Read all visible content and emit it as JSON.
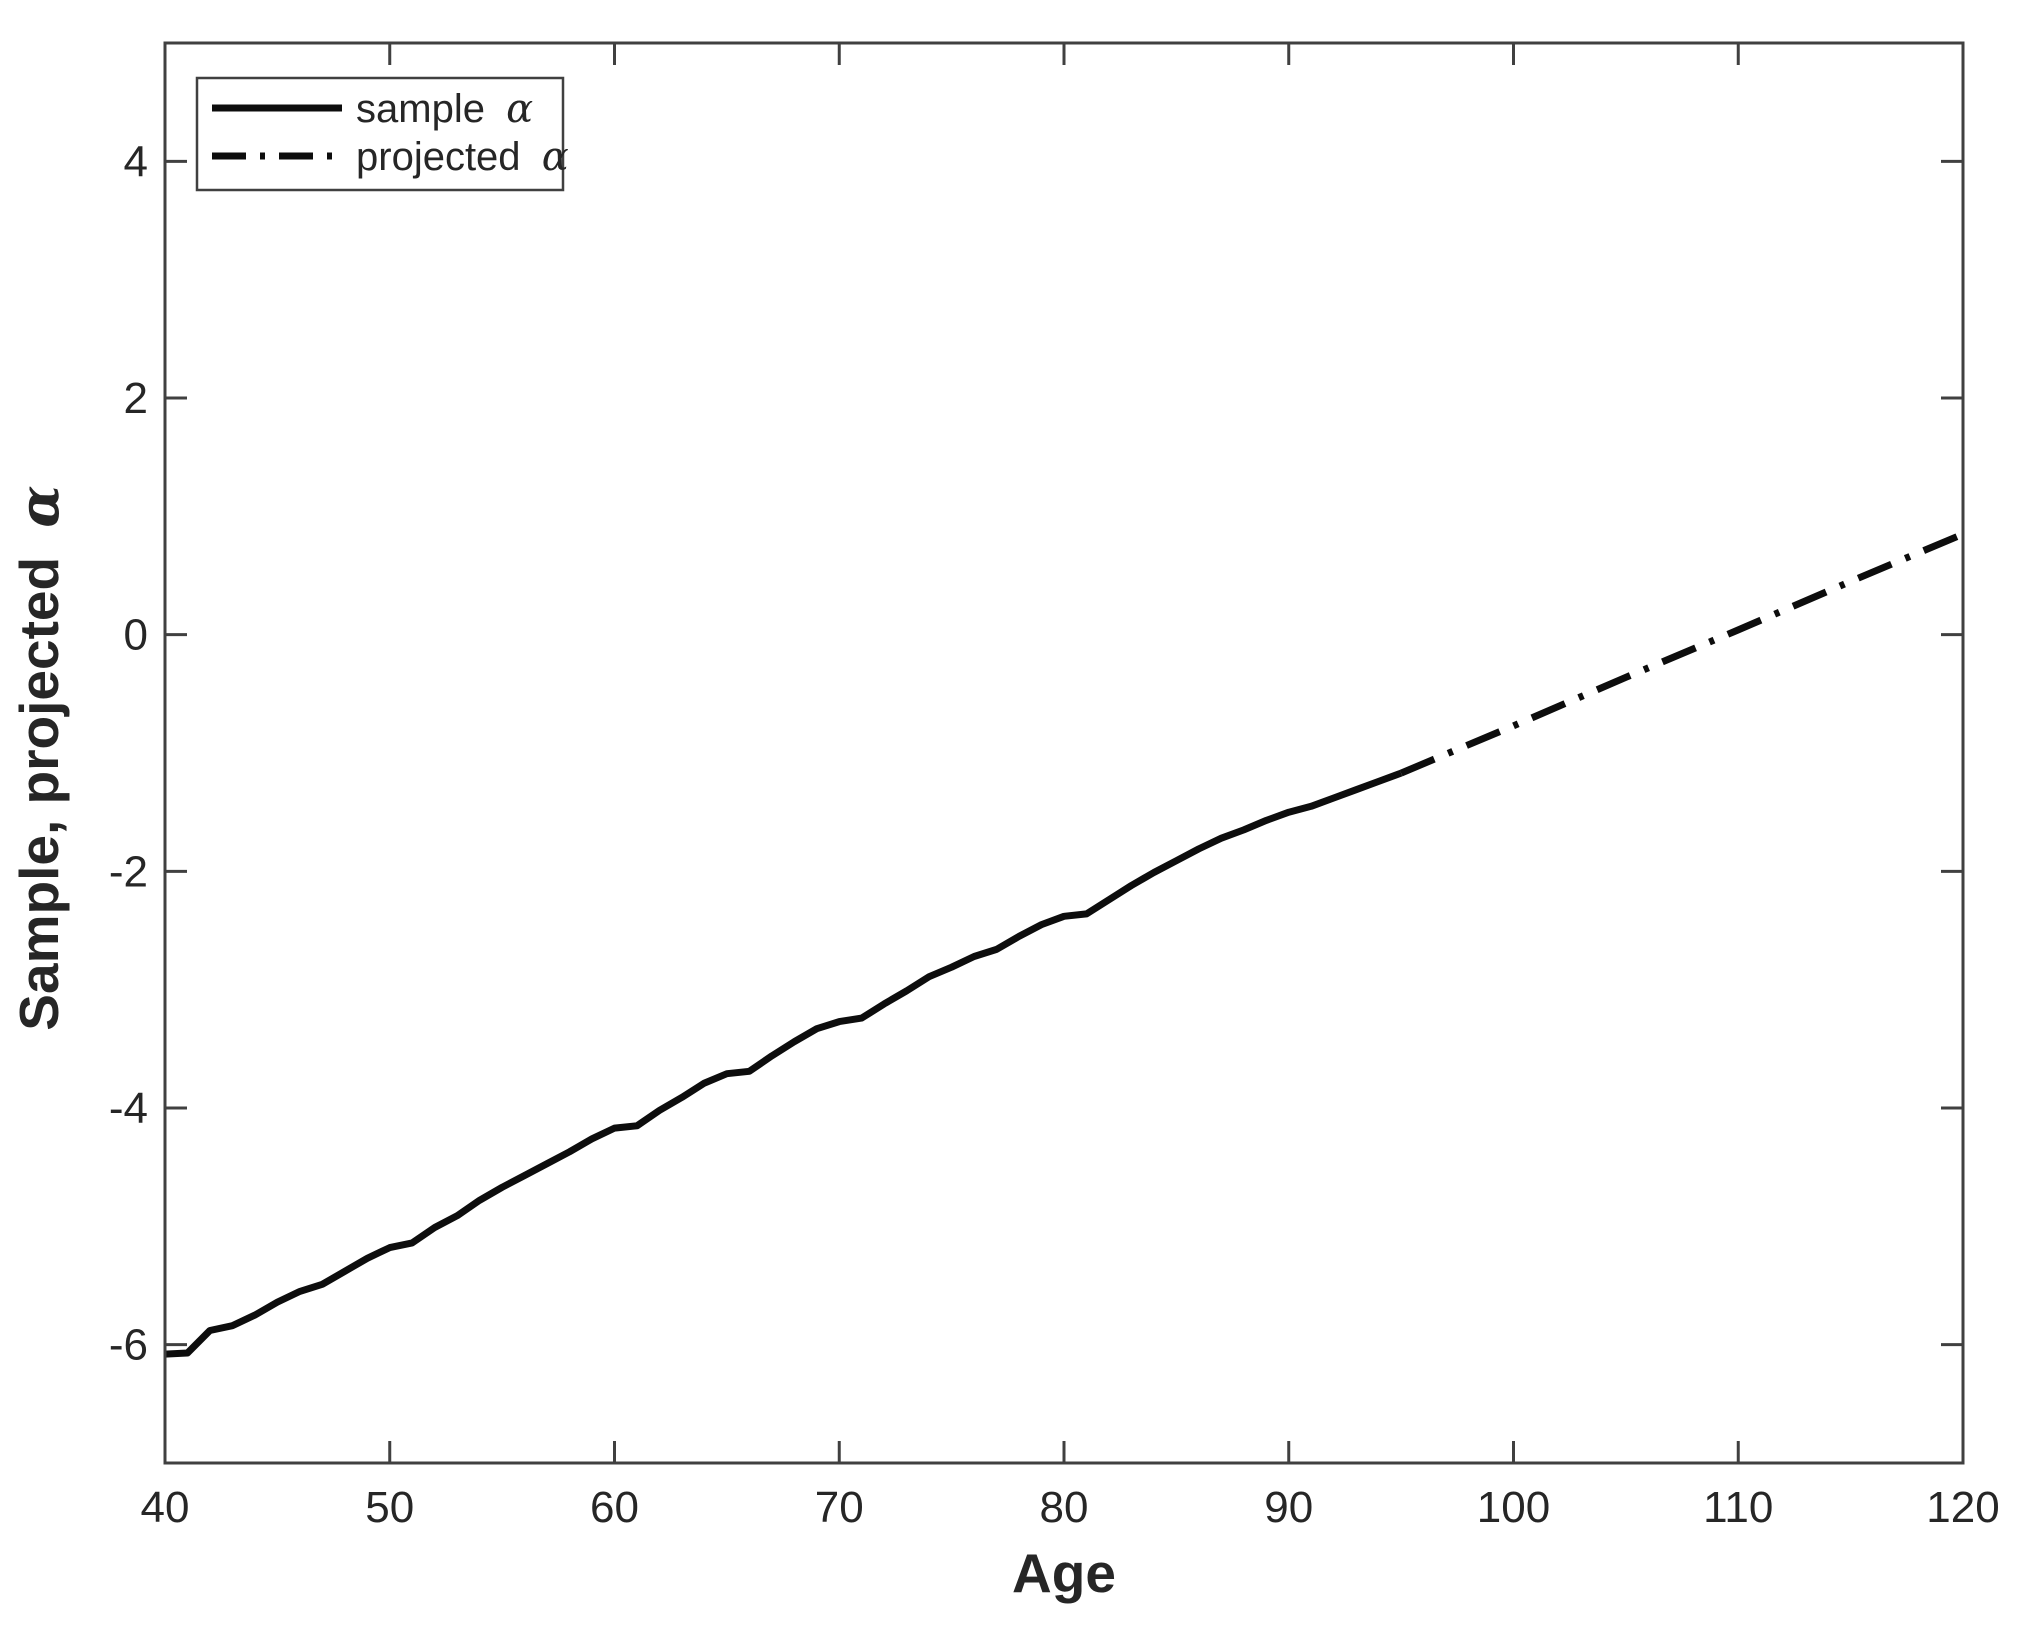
{
  "figure": {
    "background": "#ffffff"
  },
  "chart_data": {
    "type": "line",
    "title": "",
    "xlabel": "Age",
    "ylabel": {
      "text": "Sample, projected",
      "symbol": "α"
    },
    "xlim": [
      40,
      120
    ],
    "ylim": [
      -7,
      5
    ],
    "x_ticks": [
      40,
      50,
      60,
      70,
      80,
      90,
      100,
      110,
      120
    ],
    "y_ticks": [
      -6,
      -4,
      -2,
      0,
      2,
      4
    ],
    "grid": false,
    "legend_position": "top-left",
    "axis_color": "#404040",
    "tick_label_color": "#262626",
    "line_color": "#0d0d0d",
    "legend": [
      {
        "label": "sample",
        "symbol": "α",
        "style": "solid"
      },
      {
        "label": "projected",
        "symbol": "α",
        "style": "dashdot"
      }
    ],
    "series": [
      {
        "name": "sample α",
        "style": "solid",
        "x": [
          40,
          41,
          42,
          43,
          44,
          45,
          46,
          47,
          48,
          49,
          50,
          51,
          52,
          53,
          54,
          55,
          56,
          57,
          58,
          59,
          60,
          61,
          62,
          63,
          64,
          65,
          66,
          67,
          68,
          69,
          70,
          71,
          72,
          73,
          74,
          75,
          76,
          77,
          78,
          79,
          80,
          81,
          82,
          83,
          84,
          85,
          86,
          87,
          88,
          89,
          90,
          91,
          92,
          93,
          94,
          95
        ],
        "y": [
          -6.08,
          -6.07,
          -5.88,
          -5.84,
          -5.75,
          -5.64,
          -5.55,
          -5.49,
          -5.38,
          -5.27,
          -5.18,
          -5.14,
          -5.01,
          -4.91,
          -4.78,
          -4.67,
          -4.57,
          -4.47,
          -4.37,
          -4.26,
          -4.17,
          -4.15,
          -4.02,
          -3.91,
          -3.79,
          -3.71,
          -3.69,
          -3.56,
          -3.44,
          -3.33,
          -3.27,
          -3.24,
          -3.12,
          -3.01,
          -2.89,
          -2.81,
          -2.72,
          -2.66,
          -2.55,
          -2.45,
          -2.38,
          -2.36,
          -2.24,
          -2.12,
          -2.01,
          -1.91,
          -1.81,
          -1.72,
          -1.65,
          -1.57,
          -1.5,
          -1.45,
          -1.38,
          -1.31,
          -1.24,
          -1.17
        ]
      },
      {
        "name": "projected α",
        "style": "dashdot",
        "x": [
          95,
          100,
          105,
          110,
          115,
          120
        ],
        "y": [
          -1.17,
          -0.77,
          -0.36,
          0.04,
          0.45,
          0.85
        ]
      }
    ]
  }
}
